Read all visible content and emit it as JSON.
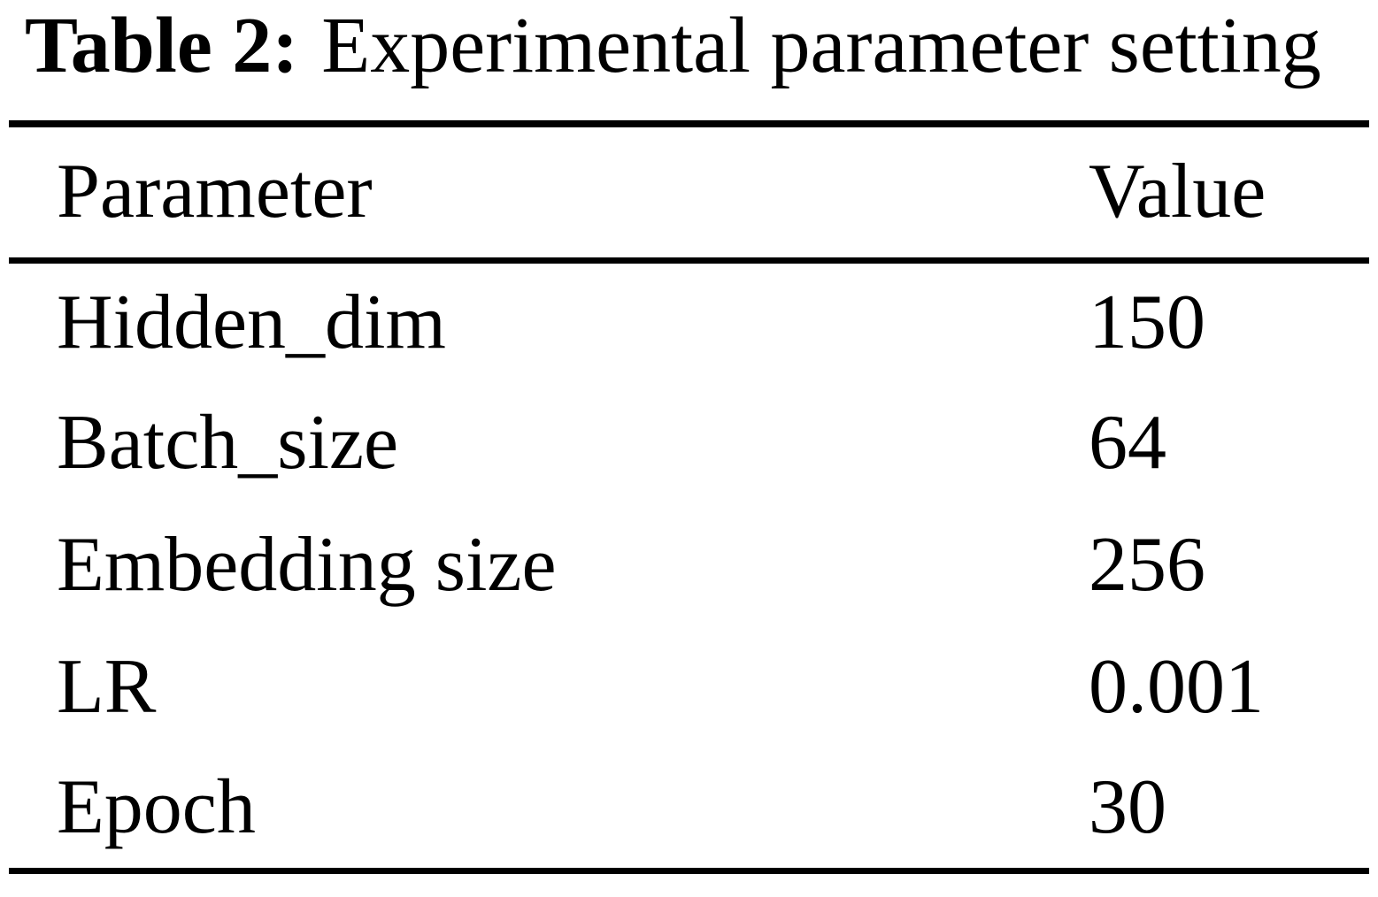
{
  "caption": {
    "label": "Table 2:",
    "text": "Experimental parameter setting"
  },
  "table": {
    "columns": [
      "Parameter",
      "Value"
    ],
    "rows": [
      {
        "param": "Hidden_dim",
        "value": "150"
      },
      {
        "param": "Batch_size",
        "value": "64"
      },
      {
        "param": "Embedding size",
        "value": "256"
      },
      {
        "param": "LR",
        "value": "0.001"
      },
      {
        "param": "Epoch",
        "value": "30"
      }
    ]
  },
  "colors": {
    "text": "#000000",
    "background": "#ffffff",
    "rule": "#000000"
  }
}
